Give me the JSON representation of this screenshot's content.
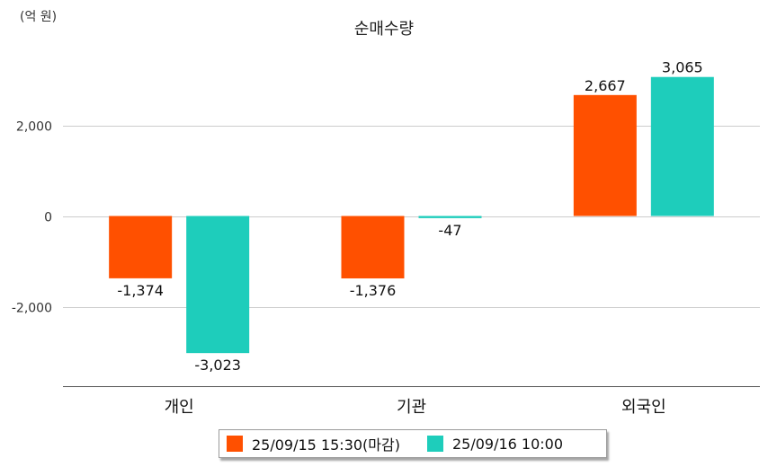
{
  "chart_data": {
    "type": "bar",
    "title": "순매수량",
    "unit_label": "(억 원)",
    "categories": [
      "개인",
      "기관",
      "외국인"
    ],
    "series": [
      {
        "name": "25/09/15 15:30(마감)",
        "color": "#ff5000",
        "values": [
          -1374,
          -1376,
          2667
        ],
        "labels": [
          "-1,374",
          "-1,376",
          "2,667"
        ]
      },
      {
        "name": "25/09/16 10:00",
        "color": "#1ecdbb",
        "values": [
          -3023,
          -47,
          3065
        ],
        "labels": [
          "-3,023",
          "-47",
          "3,065"
        ]
      }
    ],
    "yticks": [
      2000,
      0,
      -2000
    ],
    "ytick_labels": [
      "2,000",
      "0",
      "-2,000"
    ],
    "ylim": [
      -3750,
      3750
    ],
    "grid": true,
    "legend_position": "bottom"
  }
}
